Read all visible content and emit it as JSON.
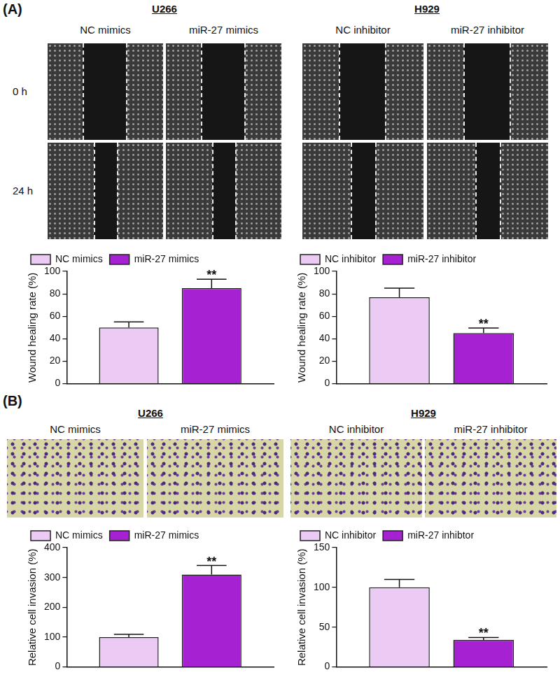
{
  "figure": {
    "panels": [
      {
        "label": "(A)",
        "groups": [
          {
            "title": "U266",
            "columns": [
              "NC mimics",
              "miR-27 mimics"
            ],
            "rows": [
              "0 h",
              "24 h"
            ]
          },
          {
            "title": "H929",
            "columns": [
              "NC inhibitor",
              "miR-27 inhibitor"
            ],
            "rows": []
          }
        ]
      },
      {
        "label": "(B)",
        "groups": [
          {
            "title": "U266",
            "columns": [
              "NC mimics",
              "miR-27 mimics"
            ],
            "rows": []
          },
          {
            "title": "H929",
            "columns": [
              "NC inhibitor",
              "miR-27 inhibitor"
            ],
            "rows": []
          }
        ]
      }
    ]
  },
  "chart_data": [
    {
      "type": "bar",
      "ylabel": "Wound healing rate (%)",
      "categories": [
        null
      ],
      "series": [
        {
          "name": "NC mimics",
          "color": "#ebcaf4",
          "values": [
            50
          ],
          "errors": [
            5
          ]
        },
        {
          "name": "miR-27 mimics",
          "color": "#a521d2",
          "values": [
            85
          ],
          "errors": [
            8
          ],
          "annotation": "**"
        }
      ],
      "ylim": [
        0,
        100
      ],
      "yticks": [
        0,
        20,
        40,
        60,
        80,
        100
      ],
      "legend": "top-left",
      "tick_labels": "y",
      "grid": false
    },
    {
      "type": "bar",
      "ylabel": "Wound healing rate (%)",
      "categories": [
        null
      ],
      "series": [
        {
          "name": "NC inhibitor",
          "color": "#ebcaf4",
          "values": [
            77
          ],
          "errors": [
            8
          ]
        },
        {
          "name": "miR-27 inhibitor",
          "color": "#a521d2",
          "values": [
            45
          ],
          "errors": [
            4.5
          ],
          "annotation": "**"
        }
      ],
      "ylim": [
        0,
        100
      ],
      "yticks": [
        0,
        20,
        40,
        60,
        80,
        100
      ],
      "legend": "top-left",
      "tick_labels": "y",
      "grid": false
    },
    {
      "type": "bar",
      "ylabel": "Relative cell invasion (%)",
      "categories": [
        null
      ],
      "series": [
        {
          "name": "NC mimics",
          "color": "#ebcaf4",
          "values": [
            100
          ],
          "errors": [
            9
          ]
        },
        {
          "name": "miR-27 mimics",
          "color": "#a521d2",
          "values": [
            310
          ],
          "errors": [
            30
          ],
          "annotation": "**"
        }
      ],
      "ylim": [
        0,
        400
      ],
      "yticks": [
        0,
        100,
        200,
        300,
        400
      ],
      "legend": "top-left",
      "tick_labels": "y",
      "grid": false
    },
    {
      "type": "bar",
      "ylabel": "Relative cell invasion (%)",
      "categories": [
        null
      ],
      "series": [
        {
          "name": "NC inhibitor",
          "color": "#ebcaf4",
          "values": [
            100
          ],
          "errors": [
            10
          ]
        },
        {
          "name": "miR-27 inhibtor",
          "color": "#a521d2",
          "values": [
            34
          ],
          "errors": [
            3
          ],
          "annotation": "**"
        }
      ],
      "ylim": [
        0,
        150
      ],
      "yticks": [
        0,
        50,
        100,
        150
      ],
      "legend": "top-left",
      "tick_labels": "y",
      "grid": false
    }
  ]
}
